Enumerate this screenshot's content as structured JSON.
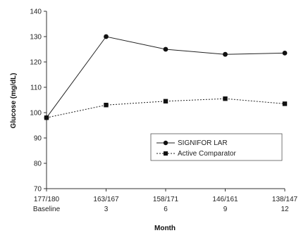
{
  "chart_data": {
    "type": "line",
    "xlabel": "Month",
    "ylabel": "Glucose (mg/dL)",
    "ylim": [
      70,
      140
    ],
    "yticks": [
      70,
      80,
      90,
      100,
      110,
      120,
      130,
      140
    ],
    "grid": false,
    "legend_position": "bottom-right",
    "categories": [
      {
        "top": "177/180",
        "bottom": "Baseline"
      },
      {
        "top": "163/167",
        "bottom": "3"
      },
      {
        "top": "158/171",
        "bottom": "6"
      },
      {
        "top": "146/161",
        "bottom": "9"
      },
      {
        "top": "138/147",
        "bottom": "12"
      }
    ],
    "series": [
      {
        "name": "SIGNIFOR LAR",
        "values": [
          98,
          130,
          125,
          123,
          123.5
        ],
        "marker": "circle",
        "line": "solid",
        "color": "#222222"
      },
      {
        "name": "Active Comparator",
        "values": [
          98,
          103,
          104.5,
          105.5,
          103.5
        ],
        "marker": "square",
        "line": "dotted",
        "color": "#222222"
      }
    ]
  }
}
